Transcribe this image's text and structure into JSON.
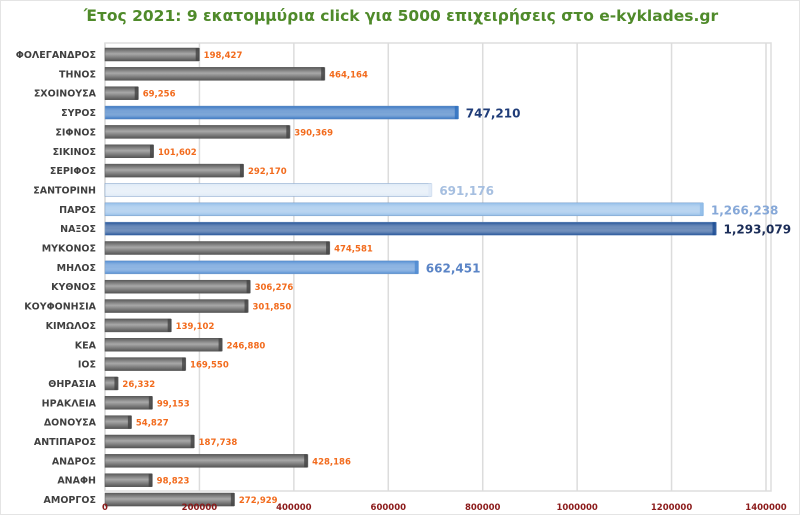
{
  "chart_data": {
    "type": "bar",
    "orientation": "horizontal",
    "title": "Έτος 2021: 9 εκατομμύρια click για 5000 επιχειρήσεις στο e-kyklades.gr",
    "xlabel": "",
    "ylabel": "",
    "xlim": [
      0,
      1400000
    ],
    "xticks": [
      "0",
      "200000",
      "400000",
      "600000",
      "800000",
      "1000000",
      "1200000",
      "1400000"
    ],
    "grid": true,
    "categories": [
      "ΦΟΛΕΓΑΝΔΡΟΣ",
      "ΤΗΝΟΣ",
      "ΣΧΟΙΝΟΥΣΑ",
      "ΣΥΡΟΣ",
      "ΣΙΦΝΟΣ",
      "ΣΙΚΙΝΟΣ",
      "ΣΕΡΙΦΟΣ",
      "ΣΑΝΤΟΡΙΝΗ",
      "ΠΑΡΟΣ",
      "ΝΑΞΟΣ",
      "ΜΥΚΟΝΟΣ",
      "ΜΗΛΟΣ",
      "ΚΥΘΝΟΣ",
      "ΚΟΥΦΟΝΗΣΙΑ",
      "ΚΙΜΩΛΟΣ",
      "ΚΕΑ",
      "ΙΟΣ",
      "ΘΗΡΑΣΙΑ",
      "ΗΡΑΚΛΕΙΑ",
      "ΔΟΝΟΥΣΑ",
      "ΑΝΤΙΠΑΡΟΣ",
      "ΑΝΔΡΟΣ",
      "ΑΝΑΦΗ",
      "ΑΜΟΡΓΟΣ"
    ],
    "values": [
      198427,
      464164,
      69256,
      747210,
      390369,
      101602,
      292170,
      691176,
      1266238,
      1293079,
      474581,
      662451,
      306276,
      301850,
      139102,
      246880,
      169550,
      26332,
      99153,
      54827,
      187738,
      428186,
      98823,
      272929
    ],
    "labels": [
      "198,427",
      "464,164",
      "69,256",
      "747,210",
      "390,369",
      "101,602",
      "292,170",
      "691,176",
      "1,266,238",
      "1,293,079",
      "474,581",
      "662,451",
      "306,276",
      "301,850",
      "139,102",
      "246,880",
      "169,550",
      "26,332",
      "99,153",
      "54,827",
      "187,738",
      "428,186",
      "98,823",
      "272,929"
    ],
    "highlight": {
      "ΣΥΡΟΣ": {
        "bar": "#2d6fbf",
        "label": "#1f3c78",
        "big": true
      },
      "ΣΑΝΤΟΡΙΝΗ": {
        "bar": "#dde9f6",
        "label": "#a6bfe0",
        "big": true
      },
      "ΠΑΡΟΣ": {
        "bar": "#8fbbe8",
        "label": "#86a8d8",
        "big": true
      },
      "ΝΑΞΟΣ": {
        "bar": "#1a4b93",
        "label": "#1b2d58",
        "big": true
      },
      "ΜΗΛΟΣ": {
        "bar": "#4d8ad2",
        "label": "#5a84c6",
        "big": true
      }
    },
    "default_bar_color": "#7a7a7a",
    "default_label_color": "#f26b1d"
  }
}
